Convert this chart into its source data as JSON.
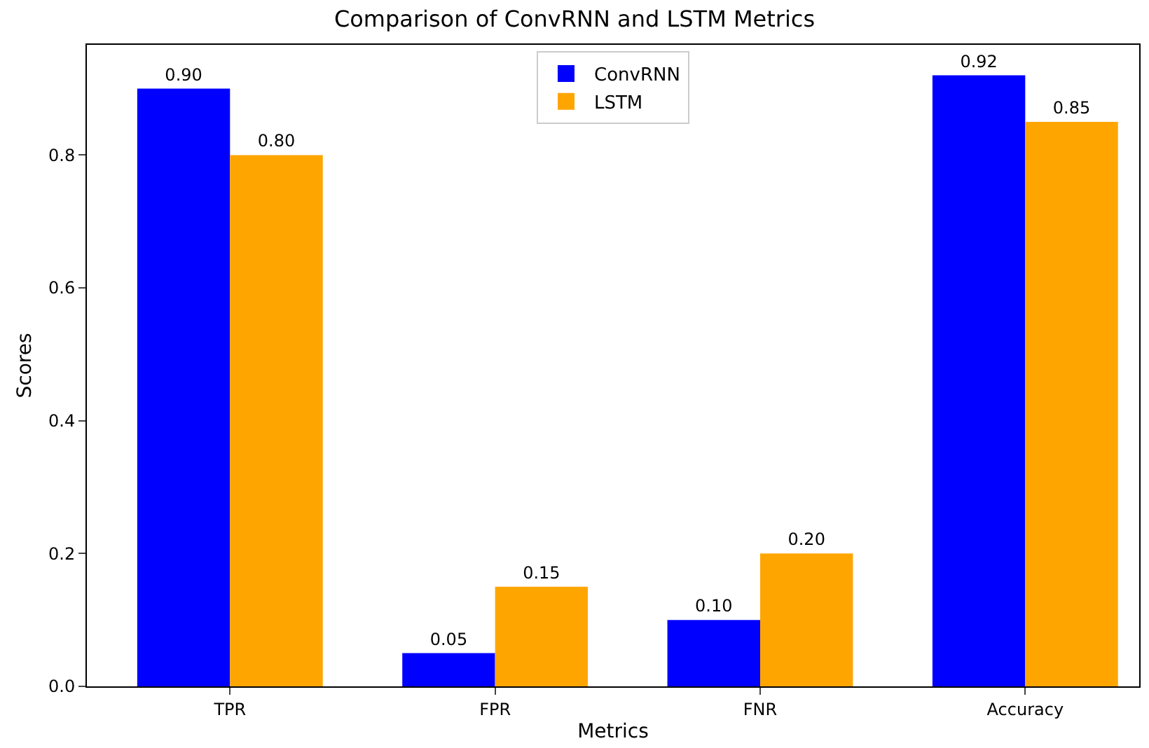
{
  "chart_data": {
    "type": "bar",
    "title": "Comparison of ConvRNN and LSTM Metrics",
    "xlabel": "Metrics",
    "ylabel": "Scores",
    "categories": [
      "TPR",
      "FPR",
      "FNR",
      "Accuracy"
    ],
    "series": [
      {
        "name": "ConvRNN",
        "color": "#0000ff",
        "values": [
          0.9,
          0.05,
          0.1,
          0.92
        ],
        "value_labels": [
          "0.90",
          "0.05",
          "0.10",
          "0.92"
        ]
      },
      {
        "name": "LSTM",
        "color": "#ffa500",
        "values": [
          0.8,
          0.15,
          0.2,
          0.85
        ],
        "value_labels": [
          "0.80",
          "0.15",
          "0.20",
          "0.85"
        ]
      }
    ],
    "ylim": [
      0,
      0.966
    ],
    "yticks": [
      {
        "value": 0,
        "label": "0.0"
      },
      {
        "value": 0.2,
        "label": "0.2"
      },
      {
        "value": 0.4,
        "label": "0.4"
      },
      {
        "value": 0.6,
        "label": "0.6"
      },
      {
        "value": 0.8,
        "label": "0.8"
      }
    ],
    "legend": "top"
  }
}
